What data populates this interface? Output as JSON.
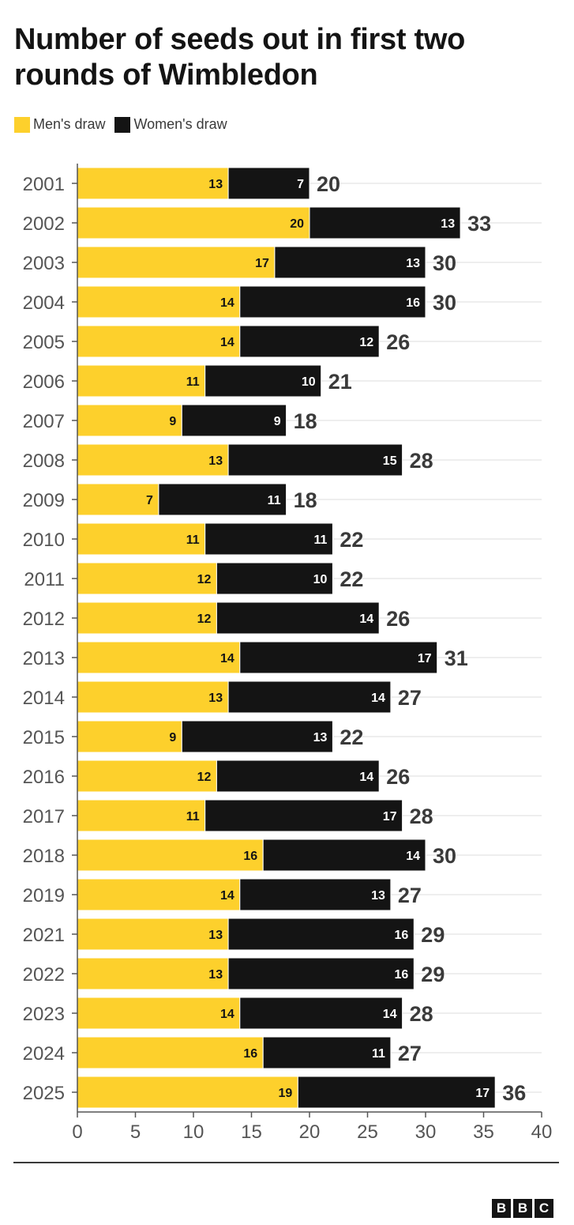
{
  "header": {
    "title": "Number of seeds out in first two rounds of Wimbledon"
  },
  "legend": [
    {
      "label": "Men's draw",
      "color": "#fdd02c"
    },
    {
      "label": "Women's draw",
      "color": "#141414"
    }
  ],
  "chart_data": {
    "type": "bar",
    "orientation": "horizontal",
    "stacked": true,
    "title": "Number of seeds out in first two rounds of Wimbledon",
    "xlim": [
      0,
      40
    ],
    "xticks": [
      0,
      5,
      10,
      15,
      20,
      25,
      30,
      35,
      40
    ],
    "grid": true,
    "legend_position": "top-left",
    "categories": [
      "2001",
      "2002",
      "2003",
      "2004",
      "2005",
      "2006",
      "2007",
      "2008",
      "2009",
      "2010",
      "2011",
      "2012",
      "2013",
      "2014",
      "2015",
      "2016",
      "2017",
      "2018",
      "2019",
      "2021",
      "2022",
      "2023",
      "2024",
      "2025"
    ],
    "series": [
      {
        "name": "Men's draw",
        "color": "#fdd02c",
        "values": [
          13,
          20,
          17,
          14,
          14,
          11,
          9,
          13,
          7,
          11,
          12,
          12,
          14,
          13,
          9,
          12,
          11,
          16,
          14,
          13,
          13,
          14,
          16,
          19
        ]
      },
      {
        "name": "Women's draw",
        "color": "#141414",
        "values": [
          7,
          13,
          13,
          16,
          12,
          10,
          9,
          15,
          11,
          11,
          10,
          14,
          17,
          14,
          13,
          14,
          17,
          14,
          13,
          16,
          16,
          14,
          11,
          17
        ]
      }
    ],
    "totals": [
      20,
      33,
      30,
      30,
      26,
      21,
      18,
      28,
      18,
      22,
      22,
      26,
      31,
      27,
      22,
      26,
      28,
      30,
      27,
      29,
      29,
      28,
      27,
      36
    ]
  },
  "footer": {
    "logo_letters": [
      "B",
      "B",
      "C"
    ]
  }
}
